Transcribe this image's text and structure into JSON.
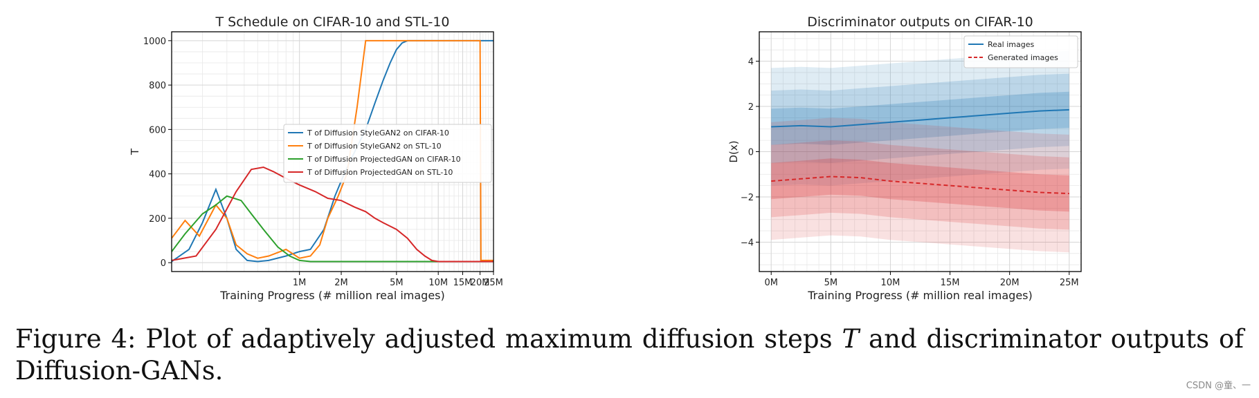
{
  "caption": {
    "prefix": "Figure 4: ",
    "text_before": "Plot of adaptively adjusted maximum diffusion steps ",
    "symbol": "T",
    "text_after": " and discriminator outputs of Diffusion-GANs."
  },
  "watermark": "CSDN @童、一",
  "chart_data": [
    {
      "type": "line",
      "title": "T Schedule on CIFAR-10 and STL-10",
      "xlabel": "Training Progress (# million real images)",
      "ylabel": "T",
      "x_scale": "log",
      "xlim": [
        0.12,
        25
      ],
      "ylim": [
        -40,
        1040
      ],
      "x_ticks": [
        1,
        2,
        5,
        10,
        15,
        20,
        25
      ],
      "x_tick_labels": [
        "1M",
        "2M",
        "5M",
        "10M",
        "15M",
        "20M",
        "25M"
      ],
      "y_ticks": [
        0,
        200,
        400,
        600,
        800,
        1000
      ],
      "y_tick_labels": [
        "0",
        "200",
        "400",
        "600",
        "800",
        "1000"
      ],
      "grid": true,
      "legend_position": "center-right",
      "series": [
        {
          "name": "T of Diffusion StyleGAN2 on CIFAR-10",
          "color": "#1f77b4",
          "x": [
            0.12,
            0.16,
            0.2,
            0.25,
            0.3,
            0.35,
            0.42,
            0.5,
            0.6,
            0.8,
            1.0,
            1.2,
            1.5,
            1.8,
            2.1,
            2.5,
            3.0,
            3.5,
            4.0,
            4.5,
            5.0,
            5.5,
            6.0,
            7.0,
            8.0,
            9.0,
            10.0,
            15.0,
            20.0,
            25.0
          ],
          "values": [
            5,
            60,
            180,
            330,
            200,
            60,
            10,
            5,
            10,
            30,
            50,
            60,
            150,
            300,
            400,
            500,
            600,
            720,
            820,
            900,
            960,
            990,
            1000,
            1000,
            1000,
            1000,
            1000,
            1000,
            1000,
            1000
          ]
        },
        {
          "name": "T of Diffusion StyleGAN2 on STL-10",
          "color": "#ff7f0e",
          "x": [
            0.12,
            0.15,
            0.19,
            0.25,
            0.3,
            0.35,
            0.42,
            0.5,
            0.6,
            0.8,
            1.0,
            1.2,
            1.4,
            1.6,
            1.9,
            2.2,
            2.6,
            3.0,
            3.4,
            4.0,
            5.0,
            6.0,
            8.0,
            10.0,
            15.0,
            19.0,
            20.0,
            20.3,
            25.0
          ],
          "values": [
            110,
            190,
            120,
            260,
            200,
            80,
            40,
            20,
            30,
            60,
            20,
            30,
            80,
            200,
            300,
            400,
            700,
            1000,
            1000,
            1000,
            1000,
            1000,
            1000,
            1000,
            1000,
            1000,
            1000,
            10,
            10
          ]
        },
        {
          "name": "T of Diffusion ProjectedGAN on CIFAR-10",
          "color": "#2ca02c",
          "x": [
            0.12,
            0.15,
            0.2,
            0.25,
            0.3,
            0.38,
            0.45,
            0.55,
            0.7,
            0.85,
            1.0,
            1.2,
            1.5,
            2.0,
            3.0,
            5.0,
            10.0,
            25.0
          ],
          "values": [
            50,
            130,
            220,
            260,
            300,
            280,
            220,
            150,
            70,
            30,
            10,
            5,
            5,
            5,
            5,
            5,
            5,
            5
          ]
        },
        {
          "name": "T of Diffusion ProjectedGAN on STL-10",
          "color": "#d62728",
          "x": [
            0.12,
            0.18,
            0.25,
            0.35,
            0.45,
            0.55,
            0.65,
            0.8,
            1.0,
            1.3,
            1.6,
            2.0,
            2.5,
            3.0,
            3.5,
            4.0,
            5.0,
            6.0,
            7.0,
            8.0,
            9.0,
            10.0,
            15.0,
            25.0
          ],
          "values": [
            10,
            30,
            150,
            320,
            420,
            430,
            410,
            380,
            350,
            320,
            290,
            280,
            250,
            230,
            200,
            180,
            150,
            110,
            60,
            30,
            10,
            5,
            5,
            5
          ]
        }
      ]
    },
    {
      "type": "line",
      "title": "Discriminator outputs on CIFAR-10",
      "xlabel": "Training Progress (# million real images)",
      "ylabel": "D(x)",
      "xlim": [
        -1,
        26
      ],
      "ylim": [
        -5.3,
        5.3
      ],
      "x_ticks": [
        0,
        5,
        10,
        15,
        20,
        25
      ],
      "x_tick_labels": [
        "0M",
        "5M",
        "10M",
        "15M",
        "20M",
        "25M"
      ],
      "y_ticks": [
        -4,
        -2,
        0,
        2,
        4
      ],
      "y_tick_labels": [
        "−4",
        "−2",
        "0",
        "2",
        "4"
      ],
      "grid": true,
      "legend_position": "top-right",
      "series": [
        {
          "name": "Real images",
          "style": "solid",
          "color": "#1f77b4",
          "x": [
            0,
            2.5,
            5,
            7.5,
            10,
            12.5,
            15,
            17.5,
            20,
            22.5,
            25
          ],
          "values": [
            1.1,
            1.15,
            1.1,
            1.2,
            1.3,
            1.4,
            1.5,
            1.6,
            1.7,
            1.8,
            1.85
          ],
          "band_inner_width": 0.8,
          "band_mid_width": 1.6,
          "band_outer_width": 2.6
        },
        {
          "name": "Generated images",
          "style": "dashed",
          "color": "#d62728",
          "x": [
            0,
            2.5,
            5,
            7.5,
            10,
            12.5,
            15,
            17.5,
            20,
            22.5,
            25
          ],
          "values": [
            -1.3,
            -1.2,
            -1.1,
            -1.15,
            -1.3,
            -1.4,
            -1.5,
            -1.6,
            -1.7,
            -1.8,
            -1.85
          ],
          "band_inner_width": 0.8,
          "band_mid_width": 1.6,
          "band_outer_width": 2.6
        }
      ]
    }
  ]
}
